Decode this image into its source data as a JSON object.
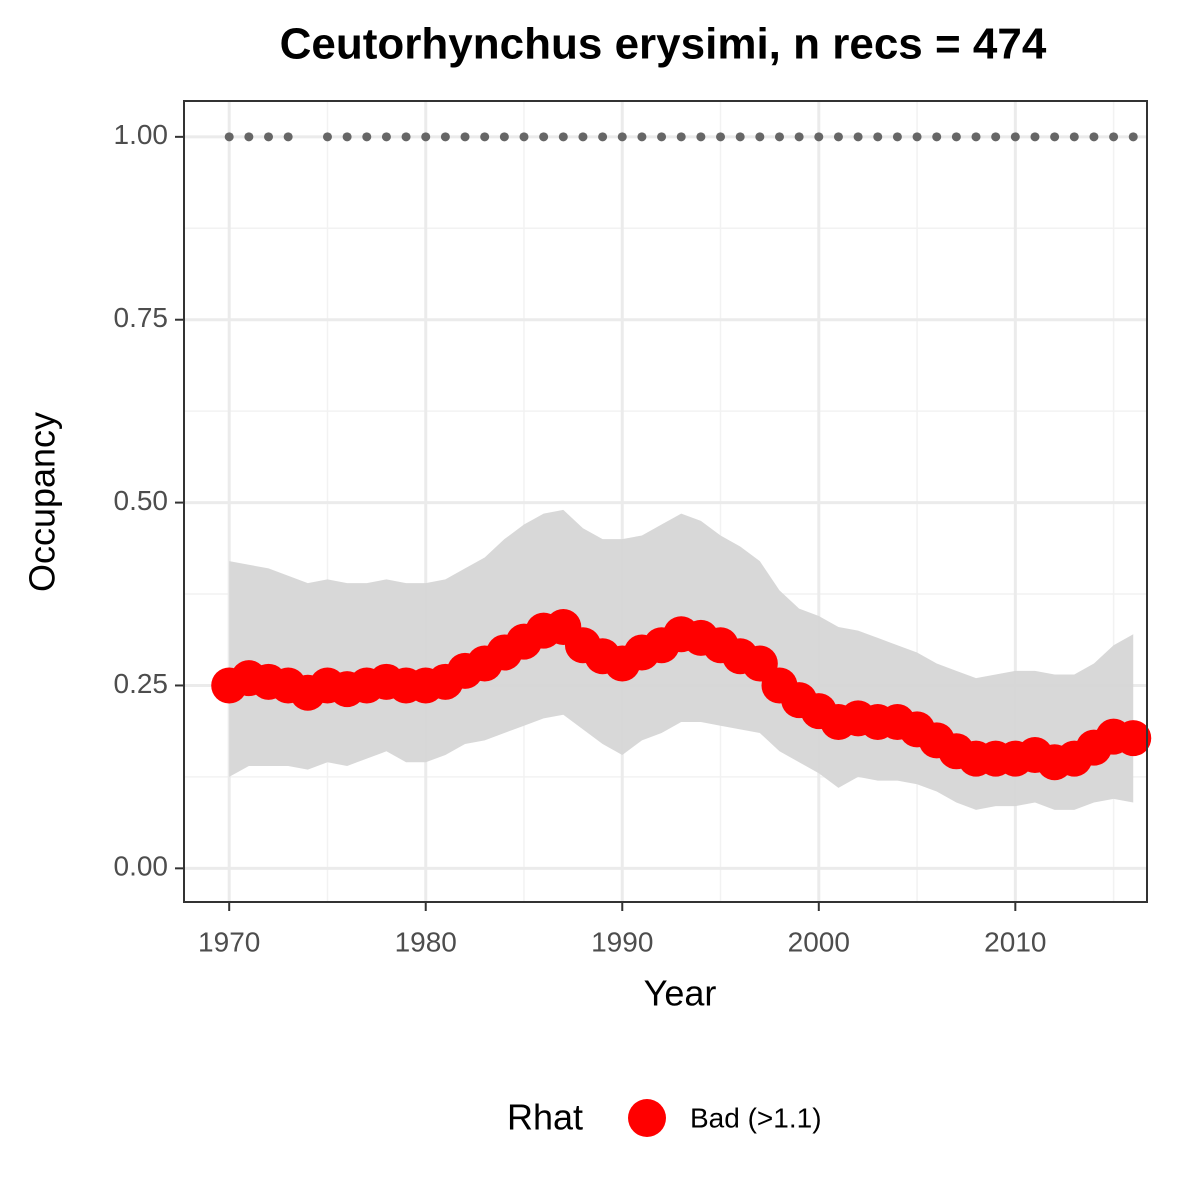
{
  "chart_data": {
    "type": "line",
    "title": "Ceutorhynchus erysimi, n recs = 474",
    "x_label": "Year",
    "y_label": "Occupancy",
    "xlim": [
      1967.7,
      2016.7
    ],
    "ylim": [
      -0.046,
      1.049
    ],
    "xticks": [
      1970,
      1980,
      1990,
      2000,
      2010
    ],
    "xminorticks": [
      1975,
      1985,
      1995,
      2005,
      2015
    ],
    "yticks": [
      {
        "value": 0,
        "label": "0.00"
      },
      {
        "value": 0.25,
        "label": "0.25"
      },
      {
        "value": 0.5,
        "label": "0.50"
      },
      {
        "value": 0.75,
        "label": "0.75"
      },
      {
        "value": 1,
        "label": "1.00"
      }
    ],
    "yminorticks": [
      0.125,
      0.375,
      0.625,
      0.875
    ],
    "grid": true,
    "x": [
      1970,
      1971,
      1972,
      1973,
      1974,
      1975,
      1976,
      1977,
      1978,
      1979,
      1980,
      1981,
      1982,
      1983,
      1984,
      1985,
      1986,
      1987,
      1988,
      1989,
      1990,
      1991,
      1992,
      1993,
      1994,
      1995,
      1996,
      1997,
      1998,
      1999,
      2000,
      2001,
      2002,
      2003,
      2004,
      2005,
      2006,
      2007,
      2008,
      2009,
      2010,
      2011,
      2012,
      2013,
      2014,
      2015,
      2016
    ],
    "band": {
      "color": "#d6d6d6",
      "upper": [
        0.42,
        0.415,
        0.41,
        0.4,
        0.39,
        0.395,
        0.39,
        0.39,
        0.395,
        0.39,
        0.39,
        0.395,
        0.41,
        0.425,
        0.45,
        0.47,
        0.485,
        0.49,
        0.465,
        0.45,
        0.45,
        0.455,
        0.47,
        0.485,
        0.475,
        0.455,
        0.44,
        0.42,
        0.38,
        0.355,
        0.345,
        0.33,
        0.325,
        0.315,
        0.305,
        0.295,
        0.28,
        0.27,
        0.26,
        0.265,
        0.27,
        0.27,
        0.265,
        0.265,
        0.28,
        0.305,
        0.32
      ],
      "lower": [
        0.125,
        0.14,
        0.14,
        0.14,
        0.135,
        0.145,
        0.14,
        0.15,
        0.16,
        0.145,
        0.145,
        0.155,
        0.17,
        0.175,
        0.185,
        0.195,
        0.205,
        0.21,
        0.19,
        0.17,
        0.155,
        0.175,
        0.185,
        0.2,
        0.2,
        0.195,
        0.19,
        0.185,
        0.16,
        0.145,
        0.13,
        0.11,
        0.125,
        0.12,
        0.12,
        0.115,
        0.105,
        0.09,
        0.08,
        0.085,
        0.085,
        0.09,
        0.08,
        0.08,
        0.09,
        0.095,
        0.09
      ]
    },
    "legend_title": "Rhat",
    "series": [
      {
        "name": "Bad (>1.1)",
        "color": "#ff0000",
        "values": [
          0.25,
          0.26,
          0.255,
          0.25,
          0.24,
          0.25,
          0.245,
          0.25,
          0.255,
          0.25,
          0.25,
          0.255,
          0.27,
          0.28,
          0.295,
          0.31,
          0.325,
          0.33,
          0.305,
          0.29,
          0.28,
          0.295,
          0.305,
          0.32,
          0.315,
          0.305,
          0.29,
          0.28,
          0.25,
          0.23,
          0.215,
          0.2,
          0.205,
          0.2,
          0.2,
          0.19,
          0.175,
          0.16,
          0.15,
          0.15,
          0.15,
          0.155,
          0.145,
          0.15,
          0.165,
          0.18,
          0.178
        ]
      }
    ],
    "records": {
      "color": "#666666",
      "x": [
        1970,
        1971,
        1972,
        1973,
        1975,
        1976,
        1977,
        1978,
        1979,
        1980,
        1981,
        1982,
        1983,
        1984,
        1985,
        1986,
        1987,
        1988,
        1989,
        1990,
        1991,
        1992,
        1993,
        1994,
        1995,
        1996,
        1997,
        1998,
        1999,
        2000,
        2001,
        2002,
        2003,
        2004,
        2005,
        2006,
        2007,
        2008,
        2009,
        2010,
        2011,
        2012,
        2013,
        2014,
        2015,
        2016
      ],
      "values": [
        1,
        1,
        1,
        1,
        1,
        1,
        1,
        1,
        1,
        1,
        1,
        1,
        1,
        1,
        1,
        1,
        1,
        1,
        1,
        1,
        1,
        1,
        1,
        1,
        1,
        1,
        1,
        1,
        1,
        1,
        1,
        1,
        1,
        1,
        1,
        1,
        1,
        1,
        1,
        1,
        1,
        1,
        1,
        1,
        1,
        1
      ]
    }
  }
}
